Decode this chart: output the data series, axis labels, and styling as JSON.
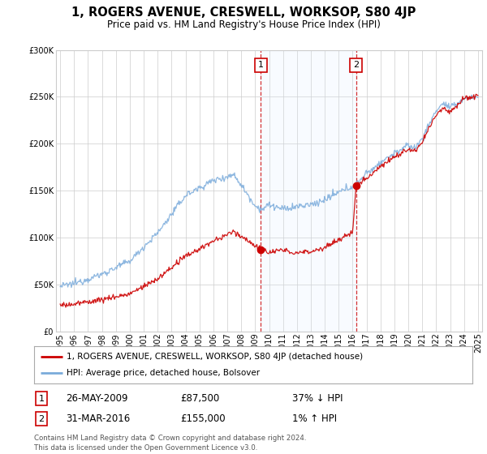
{
  "title": "1, ROGERS AVENUE, CRESWELL, WORKSOP, S80 4JP",
  "subtitle": "Price paid vs. HM Land Registry's House Price Index (HPI)",
  "legend_line1": "1, ROGERS AVENUE, CRESWELL, WORKSOP, S80 4JP (detached house)",
  "legend_line2": "HPI: Average price, detached house, Bolsover",
  "transaction1": {
    "label": "1",
    "date": "26-MAY-2009",
    "price": "£87,500",
    "change": "37% ↓ HPI"
  },
  "transaction2": {
    "label": "2",
    "date": "31-MAR-2016",
    "price": "£155,000",
    "change": "1% ↑ HPI"
  },
  "footnote": "Contains HM Land Registry data © Crown copyright and database right 2024.\nThis data is licensed under the Open Government Licence v3.0.",
  "red_color": "#cc0000",
  "blue_color": "#7aabdb",
  "shade_color": "#ddeeff",
  "background_color": "#ffffff",
  "grid_color": "#cccccc",
  "ylim": [
    0,
    300000
  ],
  "yticks": [
    0,
    50000,
    100000,
    150000,
    200000,
    250000,
    300000
  ],
  "year_start": 1995,
  "year_end": 2025,
  "transaction1_year": 2009.4,
  "transaction2_year": 2016.25,
  "t1_price": 87500,
  "t2_price": 155000
}
